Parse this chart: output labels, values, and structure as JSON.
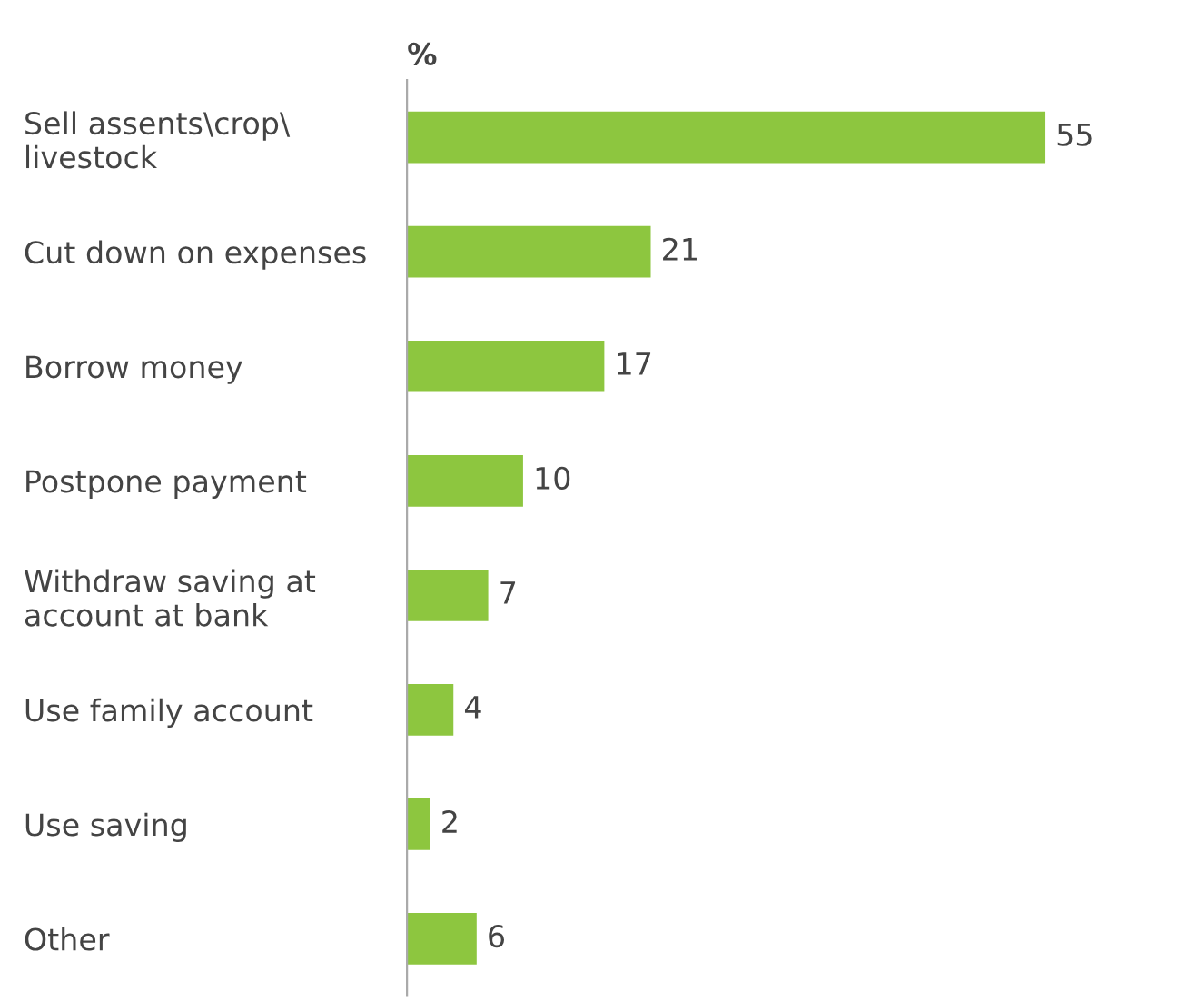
{
  "chart_data": {
    "type": "bar",
    "orientation": "horizontal",
    "xlabel": "%",
    "categories": [
      "Sell assents\\crop\\\nlivestock",
      "Cut down on expenses",
      "Borrow money",
      "Postpone payment",
      "Withdraw saving at\naccount at bank",
      "Use family account",
      "Use saving",
      "Other"
    ],
    "values": [
      55,
      21,
      17,
      10,
      7,
      4,
      2,
      6
    ],
    "color": "#8dc63f",
    "data_labels": true,
    "tick_labels": "y",
    "grid": false,
    "legend": false
  }
}
